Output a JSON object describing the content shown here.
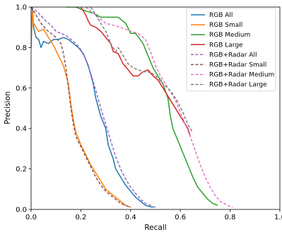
{
  "chart_data": {
    "type": "line",
    "title": "",
    "xlabel": "Recall",
    "ylabel": "Precision",
    "xlim": [
      0.0,
      1.0
    ],
    "ylim": [
      0.0,
      1.0
    ],
    "x_ticks": [
      "0.0",
      "0.2",
      "0.4",
      "0.6",
      "0.8",
      "1.0"
    ],
    "y_ticks": [
      "0.0",
      "0.2",
      "0.4",
      "0.6",
      "0.8",
      "1.0"
    ],
    "grid": false,
    "legend_position": "top-right",
    "series": [
      {
        "name": "RGB All",
        "color": "#1f77b4",
        "style": "solid",
        "points": [
          [
            0.0,
            0.8
          ],
          [
            0.005,
            1.0
          ],
          [
            0.01,
            0.9
          ],
          [
            0.02,
            0.85
          ],
          [
            0.03,
            0.84
          ],
          [
            0.04,
            0.8
          ],
          [
            0.05,
            0.83
          ],
          [
            0.07,
            0.82
          ],
          [
            0.09,
            0.84
          ],
          [
            0.11,
            0.84
          ],
          [
            0.13,
            0.85
          ],
          [
            0.15,
            0.84
          ],
          [
            0.17,
            0.82
          ],
          [
            0.19,
            0.8
          ],
          [
            0.21,
            0.77
          ],
          [
            0.23,
            0.71
          ],
          [
            0.25,
            0.62
          ],
          [
            0.26,
            0.55
          ],
          [
            0.28,
            0.46
          ],
          [
            0.3,
            0.4
          ],
          [
            0.31,
            0.32
          ],
          [
            0.33,
            0.25
          ],
          [
            0.34,
            0.2
          ],
          [
            0.36,
            0.16
          ],
          [
            0.38,
            0.12
          ],
          [
            0.4,
            0.09
          ],
          [
            0.42,
            0.06
          ],
          [
            0.44,
            0.04
          ],
          [
            0.46,
            0.02
          ],
          [
            0.49,
            0.01
          ]
        ]
      },
      {
        "name": "RGB Small",
        "color": "#ff7f0e",
        "style": "solid",
        "points": [
          [
            0.0,
            0.8
          ],
          [
            0.005,
            0.98
          ],
          [
            0.01,
            0.92
          ],
          [
            0.02,
            0.9
          ],
          [
            0.03,
            0.88
          ],
          [
            0.05,
            0.89
          ],
          [
            0.07,
            0.85
          ],
          [
            0.09,
            0.81
          ],
          [
            0.11,
            0.76
          ],
          [
            0.13,
            0.71
          ],
          [
            0.15,
            0.62
          ],
          [
            0.16,
            0.52
          ],
          [
            0.17,
            0.44
          ],
          [
            0.18,
            0.38
          ],
          [
            0.2,
            0.32
          ],
          [
            0.22,
            0.27
          ],
          [
            0.24,
            0.22
          ],
          [
            0.26,
            0.18
          ],
          [
            0.28,
            0.14
          ],
          [
            0.3,
            0.1
          ],
          [
            0.32,
            0.08
          ],
          [
            0.34,
            0.06
          ],
          [
            0.36,
            0.04
          ],
          [
            0.38,
            0.02
          ],
          [
            0.4,
            0.01
          ]
        ]
      },
      {
        "name": "RGB Medium",
        "color": "#2ca02c",
        "style": "solid",
        "points": [
          [
            0.14,
            1.0
          ],
          [
            0.18,
            1.0
          ],
          [
            0.22,
            0.98
          ],
          [
            0.25,
            0.97
          ],
          [
            0.28,
            0.95
          ],
          [
            0.31,
            0.95
          ],
          [
            0.35,
            0.95
          ],
          [
            0.38,
            0.92
          ],
          [
            0.4,
            0.87
          ],
          [
            0.42,
            0.87
          ],
          [
            0.45,
            0.82
          ],
          [
            0.47,
            0.76
          ],
          [
            0.49,
            0.7
          ],
          [
            0.51,
            0.66
          ],
          [
            0.53,
            0.62
          ],
          [
            0.55,
            0.55
          ],
          [
            0.56,
            0.46
          ],
          [
            0.57,
            0.4
          ],
          [
            0.59,
            0.34
          ],
          [
            0.61,
            0.28
          ],
          [
            0.63,
            0.22
          ],
          [
            0.65,
            0.16
          ],
          [
            0.67,
            0.11
          ],
          [
            0.69,
            0.08
          ],
          [
            0.71,
            0.05
          ],
          [
            0.73,
            0.03
          ],
          [
            0.75,
            0.02
          ]
        ]
      },
      {
        "name": "RGB Large",
        "color": "#d62728",
        "style": "solid",
        "points": [
          [
            0.2,
            1.0
          ],
          [
            0.22,
            0.96
          ],
          [
            0.23,
            0.93
          ],
          [
            0.24,
            0.91
          ],
          [
            0.26,
            0.9
          ],
          [
            0.28,
            0.88
          ],
          [
            0.3,
            0.85
          ],
          [
            0.32,
            0.82
          ],
          [
            0.33,
            0.78
          ],
          [
            0.35,
            0.77
          ],
          [
            0.37,
            0.72
          ],
          [
            0.39,
            0.69
          ],
          [
            0.41,
            0.66
          ],
          [
            0.43,
            0.66
          ],
          [
            0.45,
            0.68
          ],
          [
            0.47,
            0.69
          ],
          [
            0.49,
            0.66
          ],
          [
            0.51,
            0.64
          ],
          [
            0.53,
            0.6
          ],
          [
            0.55,
            0.56
          ],
          [
            0.57,
            0.52
          ],
          [
            0.59,
            0.48
          ],
          [
            0.61,
            0.44
          ],
          [
            0.63,
            0.4
          ],
          [
            0.64,
            0.36
          ]
        ]
      },
      {
        "name": "RGB+Radar All",
        "color": "#9467bd",
        "style": "dashed",
        "points": [
          [
            0.0,
            1.0
          ],
          [
            0.03,
            0.97
          ],
          [
            0.06,
            0.93
          ],
          [
            0.08,
            0.91
          ],
          [
            0.1,
            0.88
          ],
          [
            0.12,
            0.87
          ],
          [
            0.14,
            0.86
          ],
          [
            0.16,
            0.84
          ],
          [
            0.18,
            0.82
          ],
          [
            0.2,
            0.79
          ],
          [
            0.22,
            0.74
          ],
          [
            0.24,
            0.67
          ],
          [
            0.26,
            0.59
          ],
          [
            0.28,
            0.5
          ],
          [
            0.3,
            0.42
          ],
          [
            0.32,
            0.34
          ],
          [
            0.34,
            0.26
          ],
          [
            0.36,
            0.2
          ],
          [
            0.38,
            0.15
          ],
          [
            0.4,
            0.11
          ],
          [
            0.42,
            0.08
          ],
          [
            0.44,
            0.05
          ],
          [
            0.46,
            0.03
          ],
          [
            0.48,
            0.02
          ],
          [
            0.5,
            0.01
          ]
        ]
      },
      {
        "name": "RGB+Radar Small",
        "color": "#8c564b",
        "style": "dashed",
        "points": [
          [
            0.0,
            1.0
          ],
          [
            0.02,
            0.96
          ],
          [
            0.04,
            0.92
          ],
          [
            0.06,
            0.89
          ],
          [
            0.08,
            0.87
          ],
          [
            0.1,
            0.85
          ],
          [
            0.12,
            0.82
          ],
          [
            0.13,
            0.77
          ],
          [
            0.14,
            0.7
          ],
          [
            0.15,
            0.6
          ],
          [
            0.16,
            0.5
          ],
          [
            0.17,
            0.42
          ],
          [
            0.18,
            0.36
          ],
          [
            0.2,
            0.31
          ],
          [
            0.22,
            0.26
          ],
          [
            0.24,
            0.21
          ],
          [
            0.26,
            0.16
          ],
          [
            0.28,
            0.12
          ],
          [
            0.3,
            0.09
          ],
          [
            0.32,
            0.07
          ],
          [
            0.34,
            0.05
          ],
          [
            0.36,
            0.03
          ],
          [
            0.38,
            0.02
          ],
          [
            0.4,
            0.01
          ]
        ]
      },
      {
        "name": "RGB+Radar Medium",
        "color": "#e377c2",
        "style": "dashed",
        "points": [
          [
            0.22,
            1.0
          ],
          [
            0.25,
            0.97
          ],
          [
            0.28,
            0.94
          ],
          [
            0.3,
            0.92
          ],
          [
            0.33,
            0.91
          ],
          [
            0.36,
            0.9
          ],
          [
            0.4,
            0.88
          ],
          [
            0.43,
            0.87
          ],
          [
            0.46,
            0.84
          ],
          [
            0.48,
            0.78
          ],
          [
            0.5,
            0.71
          ],
          [
            0.52,
            0.66
          ],
          [
            0.54,
            0.62
          ],
          [
            0.56,
            0.58
          ],
          [
            0.58,
            0.54
          ],
          [
            0.6,
            0.48
          ],
          [
            0.62,
            0.42
          ],
          [
            0.64,
            0.36
          ],
          [
            0.66,
            0.29
          ],
          [
            0.68,
            0.22
          ],
          [
            0.7,
            0.16
          ],
          [
            0.72,
            0.11
          ],
          [
            0.74,
            0.07
          ],
          [
            0.76,
            0.04
          ],
          [
            0.79,
            0.02
          ],
          [
            0.81,
            0.01
          ]
        ]
      },
      {
        "name": "RGB+Radar Large",
        "color": "#7f7f7f",
        "style": "dashed",
        "points": [
          [
            0.24,
            1.0
          ],
          [
            0.26,
            0.96
          ],
          [
            0.28,
            0.92
          ],
          [
            0.3,
            0.88
          ],
          [
            0.32,
            0.82
          ],
          [
            0.34,
            0.78
          ],
          [
            0.35,
            0.8
          ],
          [
            0.37,
            0.76
          ],
          [
            0.39,
            0.72
          ],
          [
            0.41,
            0.7
          ],
          [
            0.43,
            0.69
          ],
          [
            0.45,
            0.68
          ],
          [
            0.47,
            0.68
          ],
          [
            0.49,
            0.67
          ],
          [
            0.51,
            0.65
          ],
          [
            0.53,
            0.62
          ],
          [
            0.55,
            0.6
          ],
          [
            0.57,
            0.57
          ],
          [
            0.59,
            0.53
          ],
          [
            0.61,
            0.48
          ],
          [
            0.63,
            0.42
          ],
          [
            0.65,
            0.38
          ]
        ]
      }
    ]
  }
}
